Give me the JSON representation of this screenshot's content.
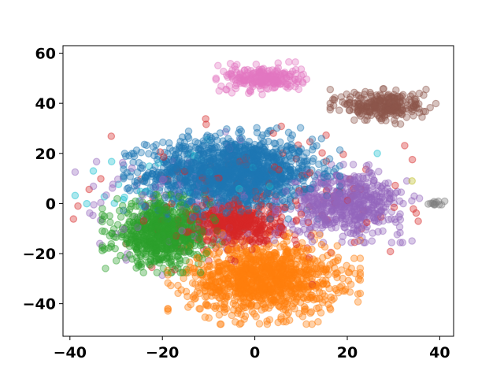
{
  "chart_data": {
    "type": "scatter",
    "title": "",
    "xlabel": "",
    "ylabel": "",
    "xlim": [
      -41.5,
      43
    ],
    "ylim": [
      -53,
      63
    ],
    "xticks": [
      -40,
      -20,
      0,
      20,
      40
    ],
    "yticks": [
      -40,
      -20,
      0,
      20,
      40,
      60
    ],
    "grid": false,
    "legend": "none",
    "marker": "hollow-circle",
    "alpha": 0.4,
    "clusters": [
      {
        "color": "#1f77b4",
        "count": 1500,
        "center": [
          -5,
          12
        ],
        "spread": [
          9,
          7
        ]
      },
      {
        "color": "#ff7f0e",
        "count": 1100,
        "center": [
          2,
          -30
        ],
        "spread": [
          8,
          7
        ]
      },
      {
        "color": "#2ca02c",
        "count": 750,
        "center": [
          -20,
          -12
        ],
        "spread": [
          5,
          6
        ]
      },
      {
        "color": "#d62728",
        "count": 450,
        "center": [
          -4,
          -8
        ],
        "spread": [
          5,
          4
        ]
      },
      {
        "color": "#d62728",
        "count": 140,
        "center": [
          0,
          0
        ],
        "spread": [
          17,
          13
        ]
      },
      {
        "color": "#9467bd",
        "count": 550,
        "center": [
          20,
          0
        ],
        "spread": [
          6,
          6
        ]
      },
      {
        "color": "#9467bd",
        "count": 120,
        "center": [
          -15,
          0
        ],
        "spread": [
          12,
          11
        ]
      },
      {
        "color": "#e377c2",
        "count": 230,
        "center": [
          2,
          50
        ],
        "spread": [
          4,
          2.5
        ]
      },
      {
        "color": "#8c564b",
        "count": 260,
        "center": [
          28,
          39
        ],
        "spread": [
          4.5,
          3
        ]
      },
      {
        "color": "#17becf",
        "count": 40,
        "center": [
          -20,
          5
        ],
        "spread": [
          10,
          10
        ]
      },
      {
        "color": "#7f7f7f",
        "count": 12,
        "center": [
          39,
          0
        ],
        "spread": [
          0.8,
          0.5
        ]
      }
    ],
    "outliers": [
      {
        "x": 34,
        "y": 9,
        "color": "#bcbd22"
      },
      {
        "x": 26.5,
        "y": 20,
        "color": "#17becf"
      },
      {
        "x": 1,
        "y": -48,
        "color": "#ff7f0e"
      }
    ]
  }
}
